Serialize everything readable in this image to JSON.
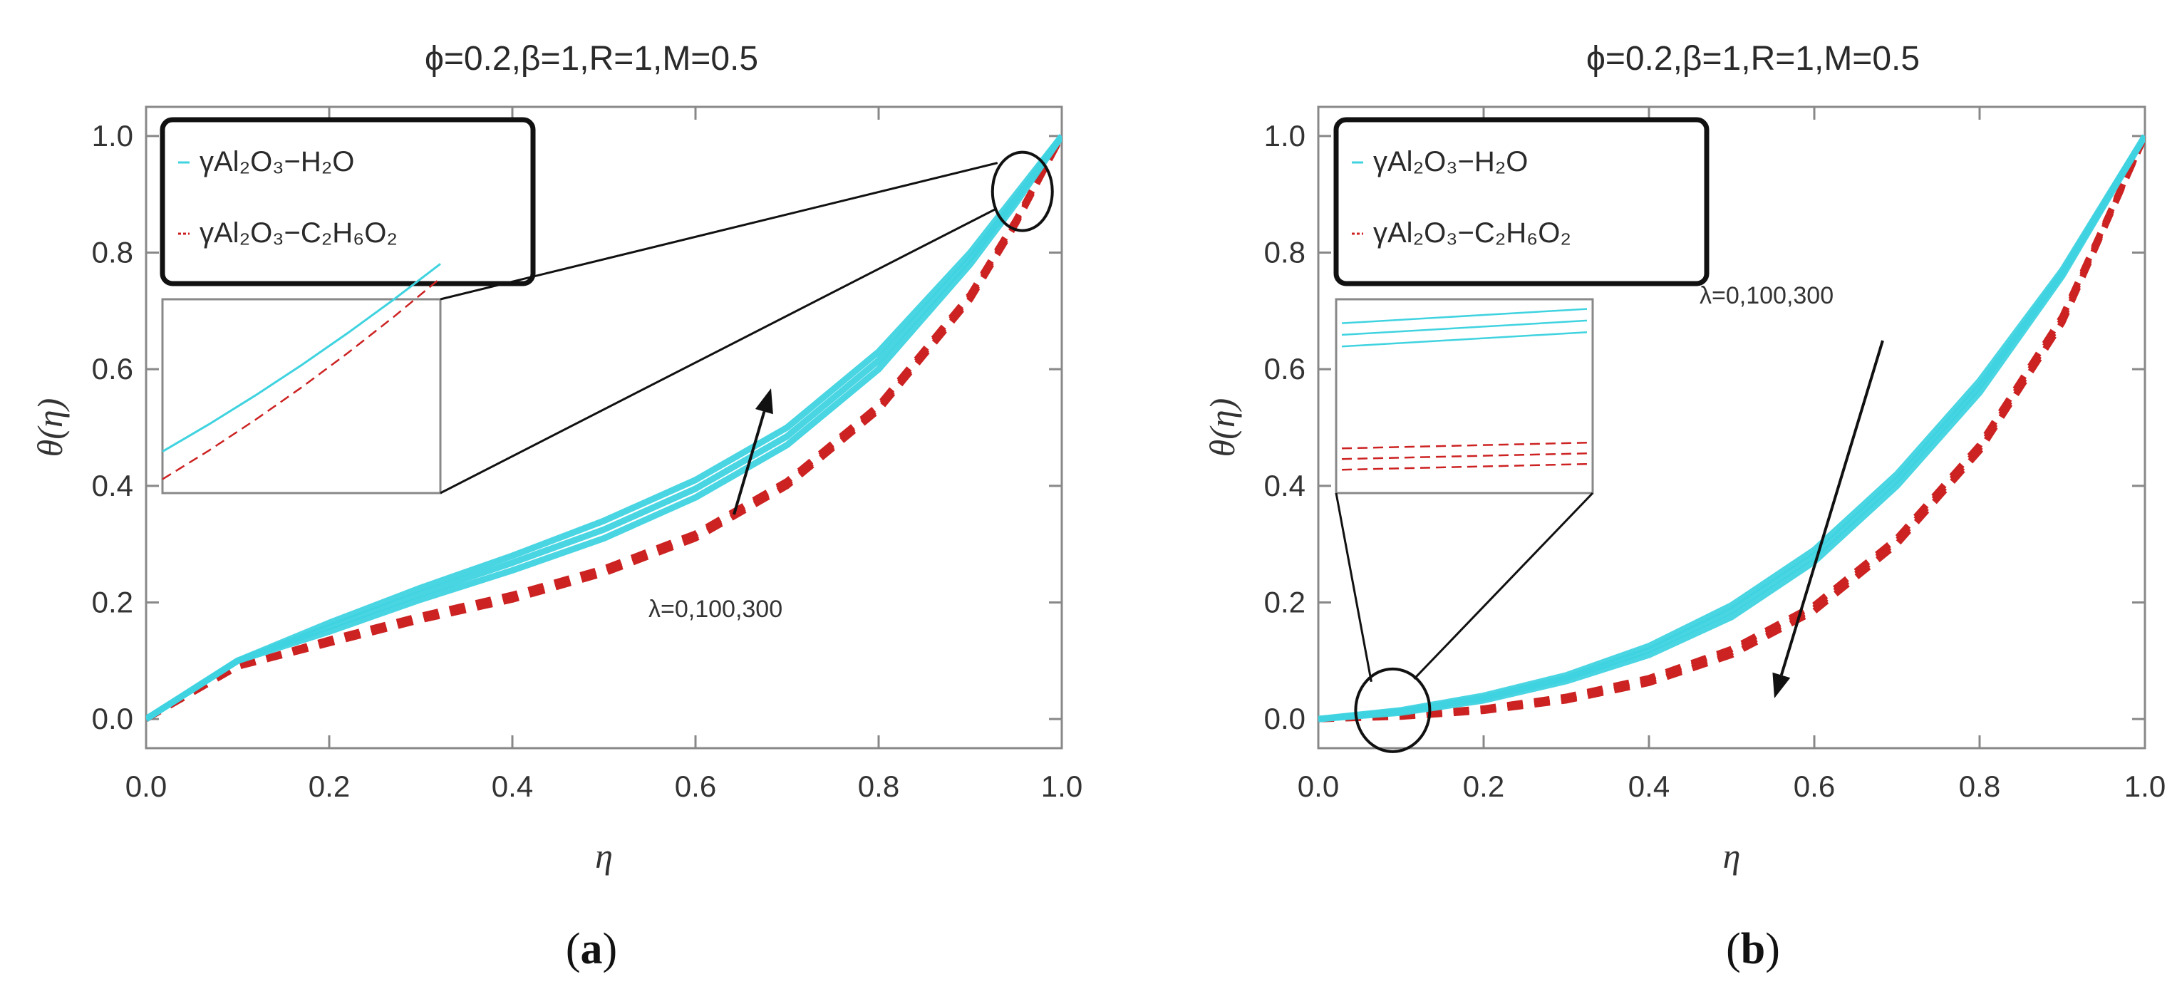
{
  "colors": {
    "water": "#3fd3e0",
    "glycol": "#cc2222",
    "frame": "#888888",
    "callout": "#111111"
  },
  "chart_data": [
    {
      "panel": "(a)",
      "panel_paren_open": "(",
      "panel_letter": "a",
      "panel_paren_close": ")",
      "type": "line",
      "title": "ϕ=0.2,β=1,R=1,M=0.5",
      "xlabel": "η",
      "ylabel": "θ(η)",
      "xlim": [
        0,
        1
      ],
      "ylim": [
        -0.05,
        1.05
      ],
      "xticks": [
        0.0,
        0.2,
        0.4,
        0.6,
        0.8,
        1.0
      ],
      "yticks": [
        0.0,
        0.2,
        0.4,
        0.6,
        0.8,
        1.0
      ],
      "tick_labels_x": [
        "0.0",
        "0.2",
        "0.4",
        "0.6",
        "0.8",
        "1.0"
      ],
      "tick_labels_y": [
        "0.0",
        "0.2",
        "0.4",
        "0.6",
        "0.8",
        "1.0"
      ],
      "legend": [
        {
          "name": "γAl₂O₃−H₂O",
          "style": "solid",
          "color": "#3fd3e0"
        },
        {
          "name": "γAl₂O₃−C₂H₆O₂",
          "style": "dashed",
          "color": "#cc2222"
        }
      ],
      "annotation": "λ=0,100,300",
      "annotation_direction": "up",
      "parameter_values": [
        0,
        100,
        300
      ],
      "x": [
        0,
        0.05,
        0.1,
        0.2,
        0.3,
        0.4,
        0.5,
        0.6,
        0.7,
        0.8,
        0.9,
        0.95,
        1.0
      ],
      "series": [
        {
          "name": "γAl₂O₃−H₂O, λ=0",
          "fluid": "water",
          "values": [
            0,
            0.05,
            0.1,
            0.15,
            0.205,
            0.255,
            0.31,
            0.38,
            0.47,
            0.6,
            0.78,
            0.885,
            1.0
          ]
        },
        {
          "name": "γAl₂O₃−H₂O, λ=100",
          "fluid": "water",
          "values": [
            0,
            0.05,
            0.1,
            0.158,
            0.215,
            0.268,
            0.325,
            0.395,
            0.485,
            0.615,
            0.79,
            0.892,
            1.0
          ]
        },
        {
          "name": "γAl₂O₃−H₂O, λ=300",
          "fluid": "water",
          "values": [
            0,
            0.05,
            0.1,
            0.165,
            0.225,
            0.28,
            0.34,
            0.41,
            0.5,
            0.63,
            0.8,
            0.9,
            1.0
          ]
        },
        {
          "name": "γAl₂O₃−C₂H₆O₂, λ=0",
          "fluid": "glycol",
          "values": [
            0,
            0.045,
            0.09,
            0.13,
            0.17,
            0.205,
            0.25,
            0.31,
            0.4,
            0.53,
            0.72,
            0.85,
            1.0
          ]
        },
        {
          "name": "γAl₂O₃−C₂H₆O₂, λ=100",
          "fluid": "glycol",
          "values": [
            0,
            0.045,
            0.09,
            0.133,
            0.173,
            0.209,
            0.254,
            0.314,
            0.404,
            0.534,
            0.724,
            0.853,
            1.0
          ]
        },
        {
          "name": "γAl₂O₃−C₂H₆O₂, λ=300",
          "fluid": "glycol",
          "values": [
            0,
            0.045,
            0.09,
            0.136,
            0.177,
            0.213,
            0.258,
            0.318,
            0.408,
            0.538,
            0.728,
            0.856,
            1.0
          ]
        }
      ],
      "zoom_region": {
        "x_center": 0.957,
        "y_center": 0.905
      }
    },
    {
      "panel": "(b)",
      "panel_paren_open": "(",
      "panel_letter": "b",
      "panel_paren_close": ")",
      "type": "line",
      "title": "ϕ=0.2,β=1,R=1,M=0.5",
      "xlabel": "η",
      "ylabel": "θ(η)",
      "xlim": [
        0,
        1
      ],
      "ylim": [
        -0.05,
        1.05
      ],
      "xticks": [
        0.0,
        0.2,
        0.4,
        0.6,
        0.8,
        1.0
      ],
      "yticks": [
        0.0,
        0.2,
        0.4,
        0.6,
        0.8,
        1.0
      ],
      "tick_labels_x": [
        "0.0",
        "0.2",
        "0.4",
        "0.6",
        "0.8",
        "1.0"
      ],
      "tick_labels_y": [
        "0.0",
        "0.2",
        "0.4",
        "0.6",
        "0.8",
        "1.0"
      ],
      "legend": [
        {
          "name": "γAl₂O₃−H₂O",
          "style": "solid",
          "color": "#3fd3e0"
        },
        {
          "name": "γAl₂O₃−C₂H₆O₂",
          "style": "dashed",
          "color": "#cc2222"
        }
      ],
      "annotation": "λ=0,100,300",
      "annotation_direction": "down",
      "parameter_values": [
        0,
        100,
        300
      ],
      "x": [
        0,
        0.1,
        0.2,
        0.3,
        0.4,
        0.5,
        0.6,
        0.7,
        0.8,
        0.9,
        1.0
      ],
      "series": [
        {
          "name": "γAl₂O₃−H₂O, λ=0",
          "fluid": "water",
          "values": [
            0,
            0.015,
            0.04,
            0.075,
            0.125,
            0.195,
            0.29,
            0.42,
            0.58,
            0.77,
            1.0
          ]
        },
        {
          "name": "γAl₂O₃−H₂O, λ=100",
          "fluid": "water",
          "values": [
            0,
            0.013,
            0.036,
            0.07,
            0.118,
            0.186,
            0.28,
            0.41,
            0.57,
            0.765,
            1.0
          ]
        },
        {
          "name": "γAl₂O₃−H₂O, λ=300",
          "fluid": "water",
          "values": [
            0,
            0.011,
            0.032,
            0.065,
            0.11,
            0.175,
            0.27,
            0.4,
            0.56,
            0.76,
            1.0
          ]
        },
        {
          "name": "γAl₂O₃−C₂H₆O₂, λ=0",
          "fluid": "glycol",
          "values": [
            0,
            0.006,
            0.018,
            0.038,
            0.07,
            0.12,
            0.195,
            0.31,
            0.47,
            0.69,
            1.0
          ]
        },
        {
          "name": "γAl₂O₃−C₂H₆O₂, λ=100",
          "fluid": "glycol",
          "values": [
            0,
            0.005,
            0.016,
            0.035,
            0.066,
            0.115,
            0.19,
            0.305,
            0.465,
            0.685,
            1.0
          ]
        },
        {
          "name": "γAl₂O₃−C₂H₆O₂, λ=300",
          "fluid": "glycol",
          "values": [
            0,
            0.004,
            0.014,
            0.032,
            0.062,
            0.11,
            0.185,
            0.3,
            0.46,
            0.68,
            1.0
          ]
        }
      ],
      "zoom_region": {
        "x_center": 0.09,
        "y_center": 0.015
      }
    }
  ]
}
